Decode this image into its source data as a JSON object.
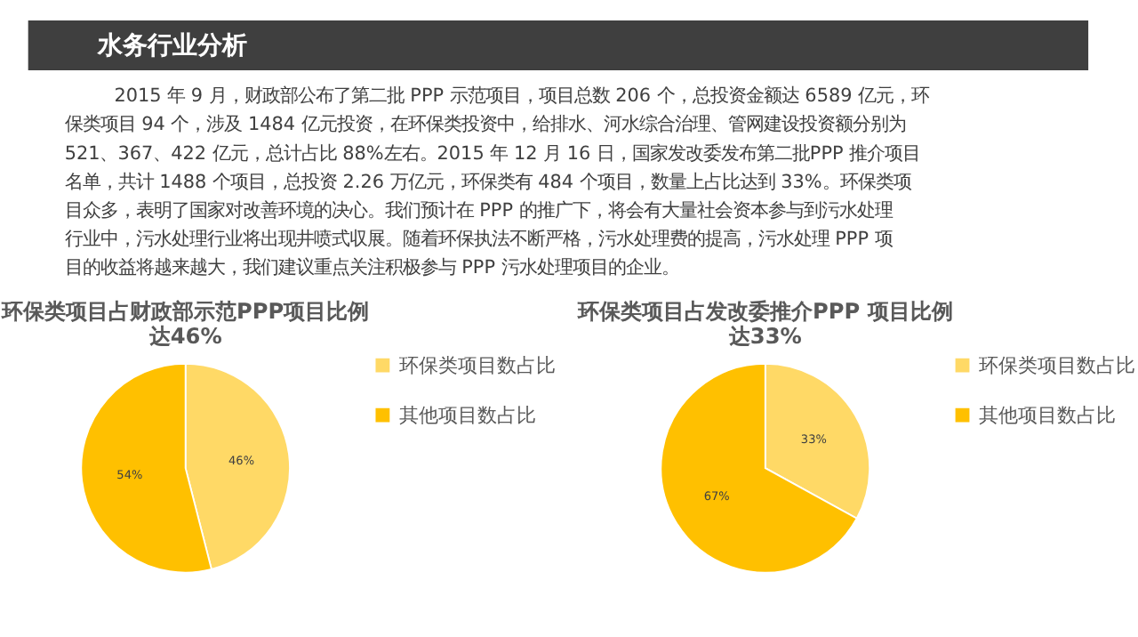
{
  "chart_data": [
    {
      "type": "other",
      "title": "水务行业分析",
      "annotations": [
        "2015 年 9 月，财政部公布了第二批 PPP 示范项目，项目总数 206 个，总投资金额达 6589 亿元，环",
        "保类项目 94 个，涉及 1484 亿元投资，在环保类投资中，给排水、河水综合治理、管网建设投资额分别为",
        "521、367、422 亿元，总计占比 88%左右。2015 年 12 月 16 日，国家发改委发布第二批PPP 推介项目",
        "名单，共计 1488 个项目，总投资 2.26 万亿元，环保类有 484 个项目，数量上占比达到 33%。环保类项",
        "目众多，表明了国家对改善环境的决心。我们预计在 PPP 的推广下，将会有大量社会资本参与到污水处理",
        "行业中，污水处理行业将出现井喷式収展。随着环保执法不断严格，污水处理费的提高，污水处理 PPP 项",
        "目的收益将越来越大，我们建议重点关注积极参与 PPP 污水处理项目的企业。"
      ]
    },
    {
      "type": "pie",
      "title": "环保类项目占财政部示范PPP项目比例达46%",
      "categories": [
        "环保类项目数占比",
        "其他项目数占比"
      ],
      "values": [
        46,
        54
      ],
      "value_labels": [
        "46%",
        "54%"
      ],
      "colors": [
        "#ffd966",
        "#ffc000"
      ],
      "legend": "right"
    },
    {
      "type": "pie",
      "title": "环保类项目占发改委推介PPP 项目比例达33%",
      "categories": [
        "环保类项目数占比",
        "其他项目数占比"
      ],
      "values": [
        33,
        67
      ],
      "value_labels": [
        "33%",
        "67%"
      ],
      "colors": [
        "#ffd966",
        "#ffc000"
      ],
      "legend": "right"
    }
  ]
}
